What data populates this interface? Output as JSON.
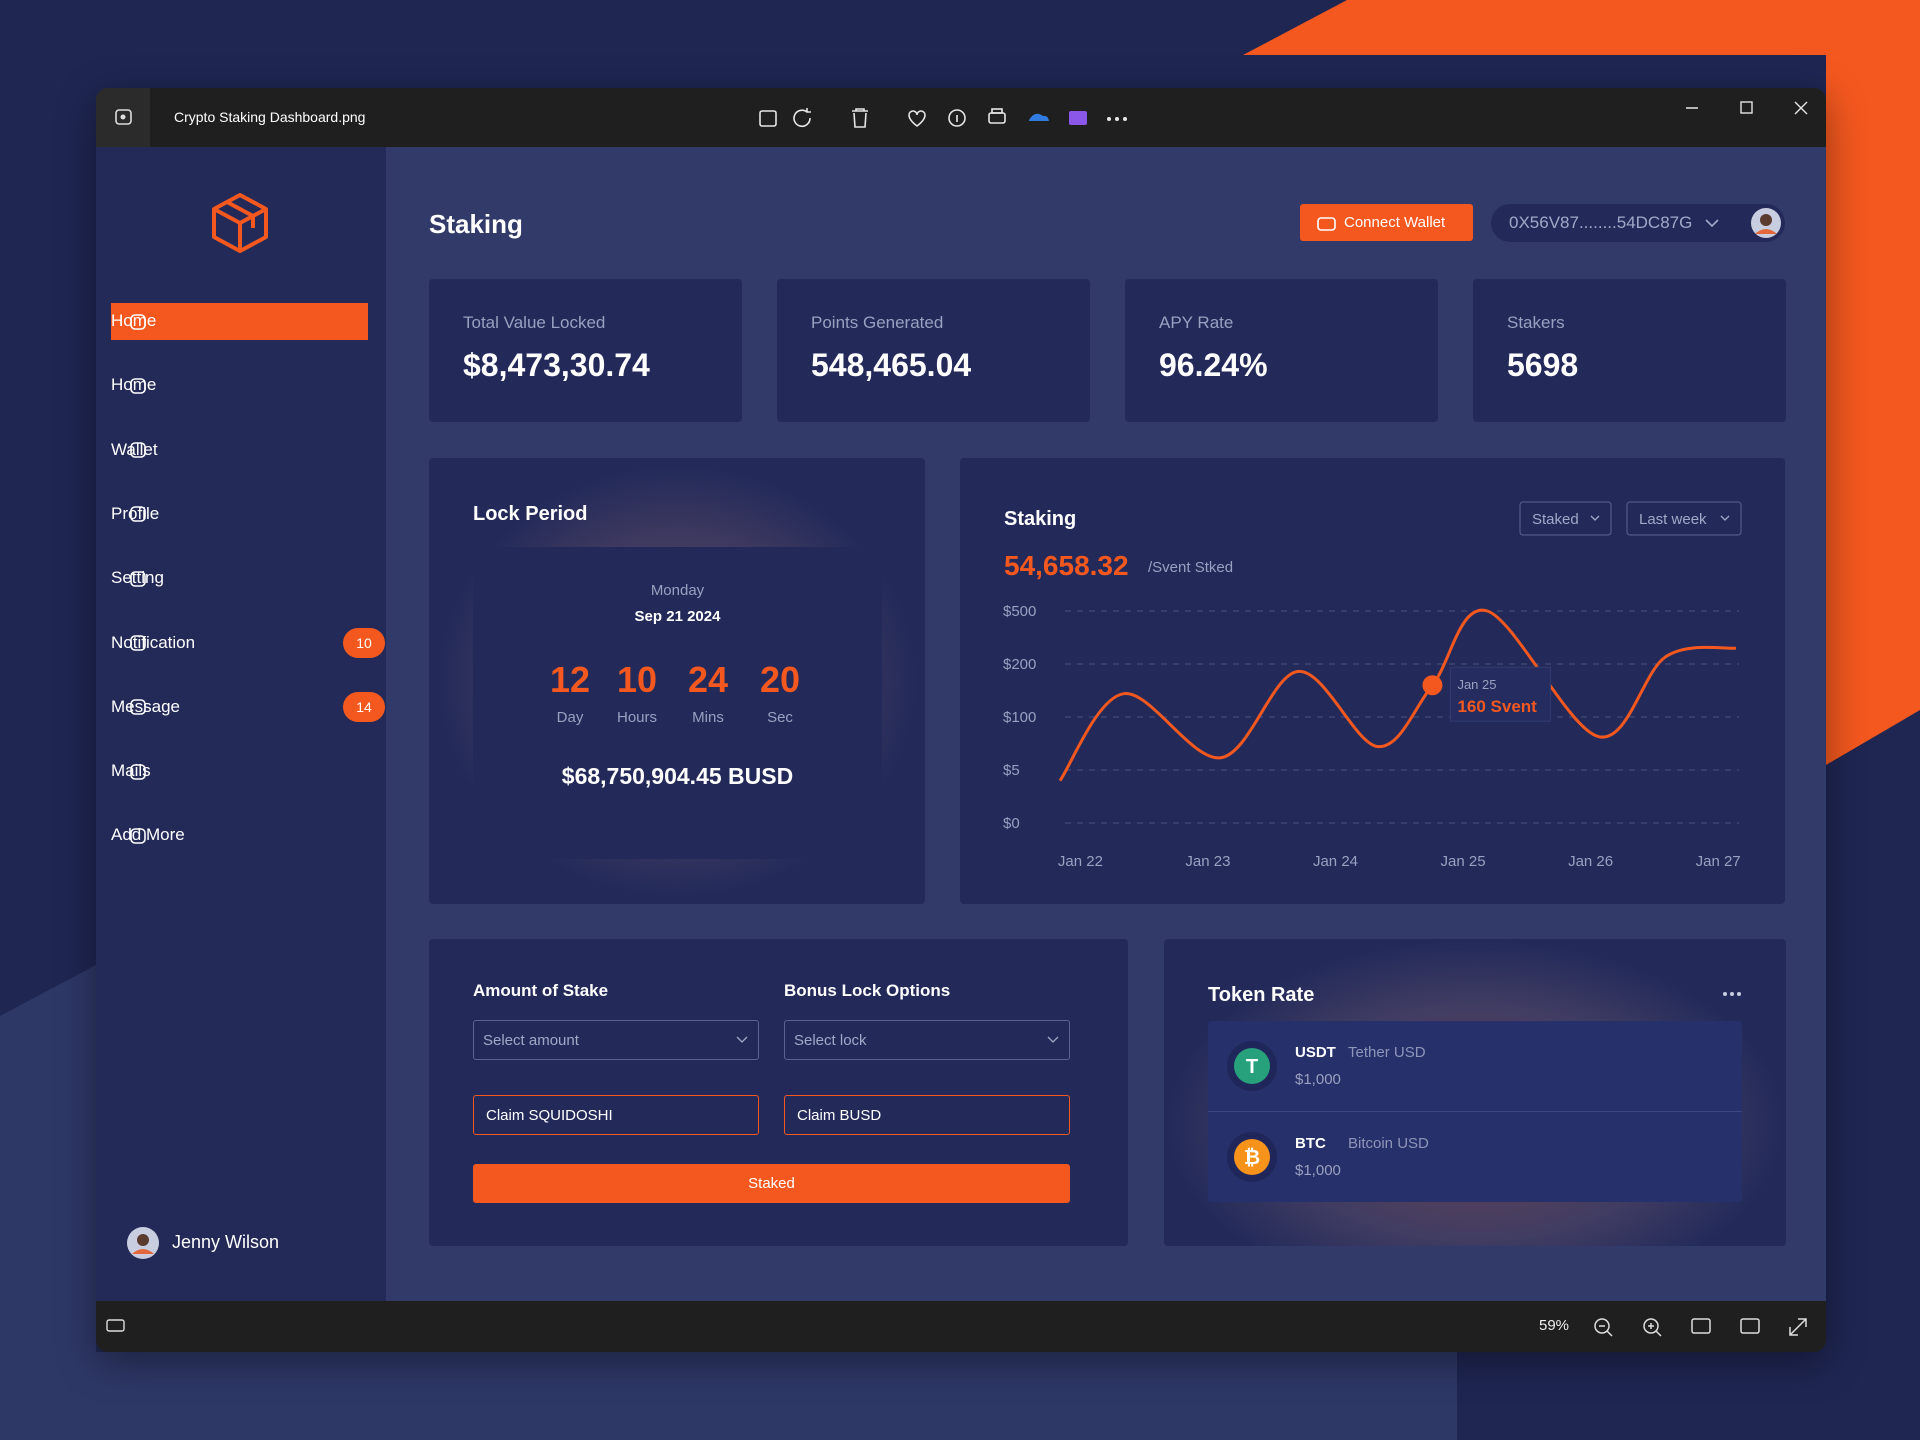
{
  "window": {
    "title": "Crypto Staking Dashboard.png",
    "zoom": "59%"
  },
  "sidebar": {
    "menu": [
      {
        "label": "Home",
        "active": true
      },
      {
        "label": "Home"
      },
      {
        "label": "Wallet"
      },
      {
        "label": "Profile"
      },
      {
        "label": "Setting"
      },
      {
        "label": "Notification",
        "badge": 10
      },
      {
        "label": "Message",
        "badge": 14
      },
      {
        "label": "Mails"
      },
      {
        "label": "Add More"
      }
    ],
    "user": "Jenny Wilson"
  },
  "header": {
    "title": "Staking",
    "connect_button": "Connect Wallet",
    "address": "0X56V87........54DC87G"
  },
  "stats": [
    {
      "label": "Total Value Locked",
      "value": "$8,473,30.74"
    },
    {
      "label": "Points Generated",
      "value": "548,465.04"
    },
    {
      "label": "APY Rate",
      "value": "96.24%"
    },
    {
      "label": "Stakers",
      "value": "5698"
    }
  ],
  "lock_period": {
    "title": "Lock Period",
    "weekday": "Monday",
    "date": "Sep 21 2024",
    "countdown": [
      {
        "value": "12",
        "unit": "Day"
      },
      {
        "value": "10",
        "unit": "Hours"
      },
      {
        "value": "24",
        "unit": "Mins"
      },
      {
        "value": "20",
        "unit": "Sec"
      }
    ],
    "amount": "$68,750,904.45 BUSD"
  },
  "chart_data": {
    "type": "line",
    "title": "Staking",
    "headline": "54,658.32",
    "headline_unit": "/Svent Stked",
    "filters": [
      "Staked",
      "Last week"
    ],
    "xlim": [
      21.84,
      27.14
    ],
    "xticks": [
      {
        "value": 22,
        "label": "Jan 22"
      },
      {
        "value": 23,
        "label": "Jan 23"
      },
      {
        "value": 24,
        "label": "Jan 24"
      },
      {
        "value": 25,
        "label": "Jan 25"
      },
      {
        "value": 26,
        "label": "Jan 26"
      },
      {
        "value": 27,
        "label": "Jan 27"
      }
    ],
    "ylim": [
      0,
      500
    ],
    "yticks": [
      {
        "value": 0,
        "label": "$0"
      },
      {
        "value": 5,
        "label": "$5"
      },
      {
        "value": 100,
        "label": "$100"
      },
      {
        "value": 200,
        "label": "$200"
      },
      {
        "value": 500,
        "label": "$500"
      }
    ],
    "grid": true,
    "series": [
      {
        "color": "#f4581f",
        "x": [
          21.84,
          22.34,
          23.1,
          23.71,
          24.33,
          24.76,
          25.19,
          26.06,
          26.59,
          27.14
        ],
        "values": [
          4,
          144,
          27,
          186,
          47,
          160,
          500,
          65,
          242,
          290
        ]
      }
    ],
    "tooltip": {
      "date": "Jan 25",
      "text": "160 Svent"
    }
  },
  "stake_form": {
    "amount_label": "Amount of Stake",
    "amount_placeholder": "Select amount",
    "bonus_label": "Bonus Lock Options",
    "bonus_placeholder": "Select lock",
    "claim_1": "Claim SQUIDOSHI",
    "claim_2": "Claim BUSD",
    "submit": "Staked"
  },
  "token_rate": {
    "title": "Token Rate",
    "tokens": [
      {
        "symbol": "USDT",
        "name": "Tether USD",
        "price": "$1,000",
        "color": "#26a17b",
        "glyph": "T"
      },
      {
        "symbol": "BTC",
        "name": "Bitcoin USD",
        "price": "$1,000",
        "color": "#f7931a",
        "glyph": "₿"
      }
    ]
  }
}
